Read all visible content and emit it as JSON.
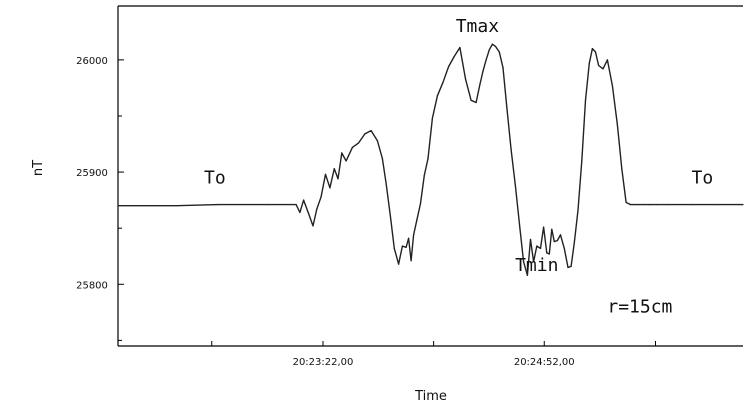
{
  "chart_data": {
    "type": "line",
    "title": "",
    "xlabel": "Time",
    "ylabel": "nT",
    "xlim": [
      0,
      100
    ],
    "ylim": [
      25745,
      26048
    ],
    "grid": false,
    "y_ticks": [
      {
        "value": 26000,
        "label": "26000"
      },
      {
        "value": 25900,
        "label": "25900"
      },
      {
        "value": 25800,
        "label": "25800"
      }
    ],
    "x_ticks": [
      {
        "value": 32.8,
        "label": "20:23:22,00"
      },
      {
        "value": 68.2,
        "label": "20:24:52,00"
      }
    ],
    "annotations": [
      {
        "text": "To",
        "x": 15.5,
        "y": 25890
      },
      {
        "text": "Tmax",
        "x": 57.5,
        "y": 26025
      },
      {
        "text": "Tmin",
        "x": 67.0,
        "y": 25812
      },
      {
        "text": "r=15cm",
        "x": 83.5,
        "y": 25775
      },
      {
        "text": "To",
        "x": 93.5,
        "y": 25890
      }
    ],
    "series": [
      {
        "x": [
          0,
          9.4,
          16.0,
          24.0,
          28.5,
          29.1,
          29.7,
          30.5,
          31.2,
          31.8,
          32.5,
          33.2,
          33.9,
          34.6,
          35.2,
          35.8,
          36.5,
          37.5,
          38.5,
          39.5,
          40.5,
          41.5,
          42.3,
          42.9,
          43.6,
          44.2,
          44.9,
          45.5,
          46.1,
          46.5,
          46.9,
          47.3,
          47.8,
          48.4,
          49.0,
          49.6,
          50.3,
          51.1,
          52.0,
          52.9,
          53.8,
          54.7,
          55.6,
          56.5,
          57.3,
          57.9,
          58.4,
          58.9,
          59.4,
          59.9,
          60.4,
          61.0,
          61.6,
          62.2,
          62.9,
          63.6,
          64.3,
          64.9,
          65.5,
          66.0,
          66.5,
          67.0,
          67.6,
          68.1,
          68.6,
          69.0,
          69.4,
          69.8,
          70.3,
          70.8,
          71.4,
          72.0,
          72.5,
          73.0,
          73.6,
          74.2,
          74.8,
          75.4,
          75.9,
          76.4,
          76.9,
          77.6,
          78.3,
          79.1,
          79.9,
          80.6,
          81.3,
          82.0,
          82.6,
          83.3,
          84.1,
          84.9,
          85.4,
          86.2,
          88.0,
          92.0,
          96.0,
          100.0
        ],
        "y": [
          25870,
          25870,
          25871,
          25871,
          25871,
          25864,
          25875,
          25863,
          25852,
          25867,
          25878,
          25898,
          25886,
          25903,
          25894,
          25917,
          25910,
          25922,
          25926,
          25934,
          25937,
          25928,
          25912,
          25890,
          25860,
          25832,
          25818,
          25834,
          25833,
          25841,
          25821,
          25844,
          25857,
          25872,
          25897,
          25912,
          25948,
          25968,
          25980,
          25994,
          26003,
          26011,
          25983,
          25964,
          25962,
          25978,
          25990,
          26000,
          26009,
          26014,
          26012,
          26007,
          25993,
          25958,
          25920,
          25887,
          25850,
          25820,
          25808,
          25840,
          25820,
          25834,
          25832,
          25851,
          25828,
          25827,
          25849,
          25838,
          25839,
          25844,
          25832,
          25815,
          25816,
          25837,
          25866,
          25910,
          25964,
          25997,
          26010,
          26007,
          25995,
          25992,
          26000,
          25977,
          25942,
          25903,
          25873,
          25871,
          25871,
          25871,
          25871,
          25871,
          25871,
          25871,
          25871,
          25871,
          25871,
          25871
        ]
      }
    ]
  }
}
